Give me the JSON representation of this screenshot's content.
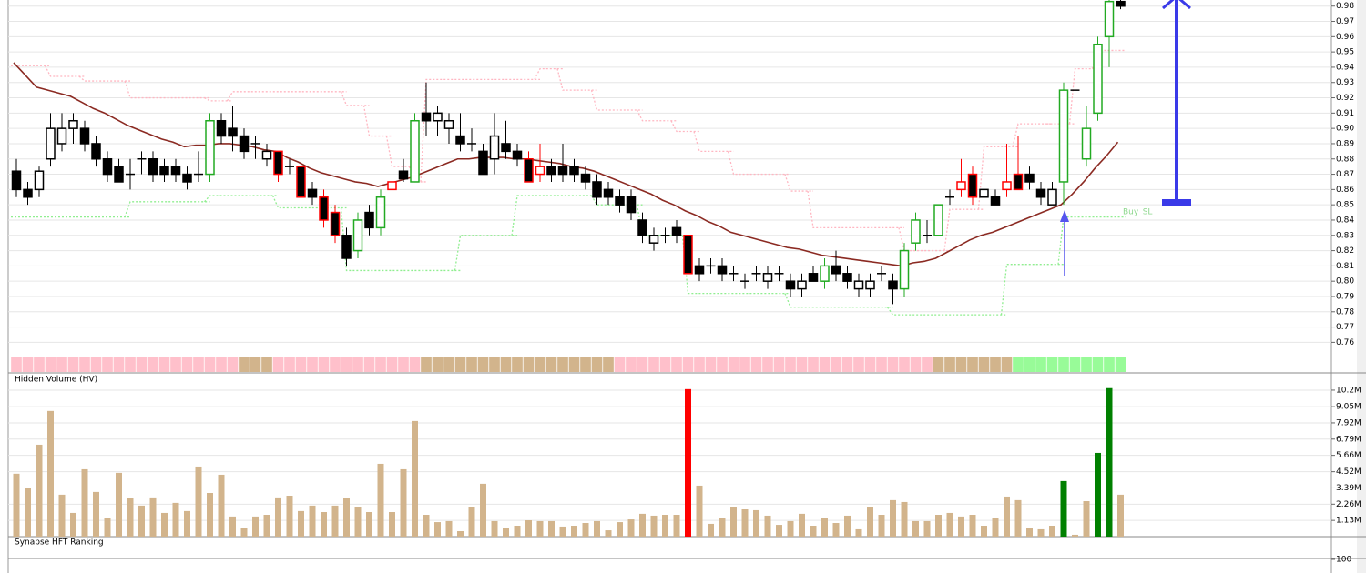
{
  "chart_data": [
    {
      "type": "candlestick",
      "ylim": [
        0.74,
        0.984
      ],
      "yticks": [
        0.76,
        0.77,
        0.78,
        0.79,
        {
          "value": 0.8,
          "label": "0.80"
        },
        0.81,
        0.82,
        0.83,
        0.84,
        0.85,
        0.86,
        0.87,
        0.88,
        0.89,
        {
          "value": 0.9,
          "label": "0.90"
        },
        0.91,
        0.92,
        0.93,
        0.94,
        0.95,
        0.96,
        0.97,
        0.98
      ],
      "grid": true,
      "open": [
        0.872,
        0.86,
        0.86,
        0.88,
        0.89,
        0.9,
        0.9,
        0.89,
        0.88,
        0.875,
        0.87,
        0.88,
        0.88,
        0.875,
        0.875,
        0.87,
        0.87,
        0.87,
        0.905,
        0.9,
        0.895,
        0.89,
        0.88,
        0.885,
        0.875,
        0.875,
        0.86,
        0.855,
        0.845,
        0.83,
        0.82,
        0.845,
        0.835,
        0.86,
        0.872,
        0.865,
        0.91,
        0.905,
        0.9,
        0.895,
        0.89,
        0.885,
        0.88,
        0.89,
        0.885,
        0.88,
        0.87,
        0.875,
        0.875,
        0.875,
        0.87,
        0.865,
        0.86,
        0.855,
        0.855,
        0.84,
        0.825,
        0.83,
        0.835,
        0.83,
        0.81,
        0.81,
        0.81,
        0.805,
        0.8,
        0.805,
        0.8,
        0.805,
        0.8,
        0.795,
        0.805,
        0.8,
        0.81,
        0.805,
        0.795,
        0.795,
        0.805,
        0.8,
        0.795,
        0.825,
        0.83,
        0.83,
        0.855,
        0.86,
        0.87,
        0.855,
        0.855,
        0.86,
        0.87,
        0.87,
        0.86,
        0.85,
        0.865,
        0.925,
        0.88,
        0.91,
        0.96,
        0.983
      ],
      "high": [
        0.88,
        0.865,
        0.875,
        0.91,
        0.91,
        0.91,
        0.905,
        0.895,
        0.885,
        0.88,
        0.88,
        0.885,
        0.885,
        0.88,
        0.88,
        0.875,
        0.885,
        0.91,
        0.91,
        0.915,
        0.9,
        0.895,
        0.89,
        0.885,
        0.88,
        0.875,
        0.865,
        0.86,
        0.85,
        0.835,
        0.845,
        0.85,
        0.86,
        0.88,
        0.88,
        0.91,
        0.93,
        0.915,
        0.91,
        0.91,
        0.9,
        0.89,
        0.91,
        0.905,
        0.89,
        0.885,
        0.89,
        0.88,
        0.89,
        0.88,
        0.875,
        0.87,
        0.865,
        0.86,
        0.86,
        0.845,
        0.835,
        0.835,
        0.84,
        0.85,
        0.815,
        0.815,
        0.815,
        0.81,
        0.805,
        0.81,
        0.81,
        0.81,
        0.805,
        0.805,
        0.81,
        0.815,
        0.82,
        0.81,
        0.805,
        0.805,
        0.81,
        0.805,
        0.825,
        0.845,
        0.84,
        0.85,
        0.86,
        0.88,
        0.875,
        0.865,
        0.86,
        0.89,
        0.895,
        0.875,
        0.865,
        0.865,
        0.93,
        0.93,
        0.915,
        0.96,
        0.984,
        0.984
      ],
      "low": [
        0.855,
        0.85,
        0.855,
        0.875,
        0.885,
        0.89,
        0.885,
        0.875,
        0.865,
        0.865,
        0.86,
        0.87,
        0.865,
        0.865,
        0.865,
        0.86,
        0.865,
        0.865,
        0.89,
        0.885,
        0.88,
        0.88,
        0.875,
        0.865,
        0.87,
        0.85,
        0.85,
        0.835,
        0.825,
        0.81,
        0.815,
        0.83,
        0.83,
        0.85,
        0.865,
        0.865,
        0.895,
        0.895,
        0.89,
        0.885,
        0.885,
        0.87,
        0.87,
        0.88,
        0.875,
        0.865,
        0.865,
        0.865,
        0.865,
        0.865,
        0.86,
        0.85,
        0.85,
        0.845,
        0.84,
        0.825,
        0.82,
        0.825,
        0.825,
        0.8,
        0.8,
        0.805,
        0.8,
        0.8,
        0.795,
        0.8,
        0.795,
        0.8,
        0.79,
        0.79,
        0.8,
        0.795,
        0.8,
        0.795,
        0.79,
        0.79,
        0.8,
        0.785,
        0.79,
        0.82,
        0.825,
        0.83,
        0.85,
        0.855,
        0.85,
        0.85,
        0.85,
        0.855,
        0.86,
        0.86,
        0.85,
        0.85,
        0.85,
        0.92,
        0.875,
        0.905,
        0.94,
        0.978
      ],
      "close": [
        0.86,
        0.855,
        0.872,
        0.9,
        0.9,
        0.905,
        0.89,
        0.88,
        0.87,
        0.865,
        0.87,
        0.88,
        0.87,
        0.87,
        0.87,
        0.865,
        0.87,
        0.905,
        0.895,
        0.895,
        0.885,
        0.89,
        0.885,
        0.87,
        0.875,
        0.855,
        0.855,
        0.84,
        0.83,
        0.815,
        0.84,
        0.835,
        0.855,
        0.865,
        0.867,
        0.905,
        0.905,
        0.91,
        0.905,
        0.89,
        0.89,
        0.87,
        0.895,
        0.885,
        0.88,
        0.865,
        0.875,
        0.87,
        0.87,
        0.87,
        0.865,
        0.855,
        0.855,
        0.85,
        0.845,
        0.83,
        0.83,
        0.83,
        0.83,
        0.805,
        0.805,
        0.81,
        0.805,
        0.805,
        0.8,
        0.805,
        0.805,
        0.805,
        0.795,
        0.8,
        0.8,
        0.81,
        0.805,
        0.8,
        0.8,
        0.8,
        0.805,
        0.795,
        0.82,
        0.84,
        0.83,
        0.85,
        0.855,
        0.865,
        0.855,
        0.86,
        0.85,
        0.865,
        0.86,
        0.865,
        0.855,
        0.86,
        0.925,
        0.925,
        0.9,
        0.955,
        0.983,
        0.98
      ],
      "edge_colors": [
        "#000000",
        "#000000",
        "#000000",
        "#000000",
        "#000000",
        "#000000",
        "#000000",
        "#000000",
        "#000000",
        "#000000",
        "#000000",
        "#000000",
        "#000000",
        "#000000",
        "#000000",
        "#000000",
        "#000000",
        "#22aa22",
        "#000000",
        "#000000",
        "#000000",
        "#000000",
        "#000000",
        "#ff0000",
        "#000000",
        "#ff0000",
        "#000000",
        "#ff0000",
        "#ff0000",
        "#000000",
        "#22aa22",
        "#000000",
        "#22aa22",
        "#ff0000",
        "#000000",
        "#22aa22",
        "#000000",
        "#000000",
        "#000000",
        "#000000",
        "#000000",
        "#000000",
        "#000000",
        "#000000",
        "#000000",
        "#ff0000",
        "#ff0000",
        "#000000",
        "#000000",
        "#000000",
        "#000000",
        "#000000",
        "#000000",
        "#000000",
        "#000000",
        "#000000",
        "#000000",
        "#000000",
        "#000000",
        "#ff0000",
        "#000000",
        "#000000",
        "#000000",
        "#000000",
        "#000000",
        "#000000",
        "#000000",
        "#000000",
        "#000000",
        "#000000",
        "#000000",
        "#22aa22",
        "#000000",
        "#000000",
        "#000000",
        "#000000",
        "#000000",
        "#000000",
        "#22aa22",
        "#22aa22",
        "#000000",
        "#22aa22",
        "#000000",
        "#ff0000",
        "#ff0000",
        "#000000",
        "#000000",
        "#ff0000",
        "#ff0000",
        "#000000",
        "#000000",
        "#000000",
        "#22aa22",
        "#000000",
        "#22aa22",
        "#22aa22",
        "#22aa22",
        "#000000"
      ],
      "ma": {
        "color": "#8b2a22",
        "values": [
          0.943,
          0.935,
          0.927,
          0.925,
          0.923,
          0.921,
          0.917,
          0.913,
          0.91,
          0.906,
          0.902,
          0.899,
          0.896,
          0.893,
          0.891,
          0.888,
          0.889,
          0.889,
          0.89,
          0.89,
          0.889,
          0.888,
          0.886,
          0.885,
          0.881,
          0.878,
          0.874,
          0.871,
          0.869,
          0.867,
          0.865,
          0.864,
          0.862,
          0.864,
          0.866,
          0.868,
          0.871,
          0.874,
          0.877,
          0.88,
          0.88,
          0.881,
          0.881,
          0.881,
          0.88,
          0.88,
          0.879,
          0.878,
          0.877,
          0.875,
          0.874,
          0.872,
          0.869,
          0.866,
          0.863,
          0.86,
          0.857,
          0.853,
          0.85,
          0.846,
          0.843,
          0.839,
          0.836,
          0.832,
          0.83,
          0.828,
          0.826,
          0.824,
          0.822,
          0.821,
          0.819,
          0.817,
          0.816,
          0.815,
          0.814,
          0.813,
          0.812,
          0.811,
          0.81,
          0.812,
          0.813,
          0.815,
          0.819,
          0.823,
          0.827,
          0.83,
          0.832,
          0.835,
          0.838,
          0.841,
          0.844,
          0.847,
          0.85,
          0.857,
          0.865,
          0.874,
          0.882,
          0.891
        ]
      },
      "upper": {
        "color": "#ffb6c1",
        "x": [
          0,
          3,
          6,
          10,
          17,
          19,
          29,
          31,
          33,
          35,
          36,
          46,
          48,
          51,
          55,
          58,
          60,
          63,
          68,
          70,
          78,
          82,
          85,
          88,
          91,
          93,
          95
        ],
        "values": [
          0.941,
          0.934,
          0.931,
          0.92,
          0.918,
          0.924,
          0.915,
          0.895,
          0.875,
          0.865,
          0.932,
          0.939,
          0.925,
          0.912,
          0.905,
          0.898,
          0.885,
          0.87,
          0.859,
          0.835,
          0.82,
          0.847,
          0.888,
          0.903,
          0.903,
          0.939,
          0.951
        ]
      },
      "lower": {
        "color": "#90ee90",
        "x": [
          0,
          10,
          17,
          23,
          29,
          39,
          44,
          51,
          55,
          59,
          68,
          77,
          87,
          92
        ],
        "values": [
          0.842,
          0.852,
          0.856,
          0.848,
          0.807,
          0.83,
          0.856,
          0.85,
          0.83,
          0.792,
          0.783,
          0.778,
          0.811,
          0.842
        ]
      },
      "state_segments": [
        {
          "start": 0,
          "end": 20,
          "color": "#ffc0cb"
        },
        {
          "start": 20,
          "end": 23,
          "color": "#d2b48c"
        },
        {
          "start": 23,
          "end": 36,
          "color": "#ffc0cb"
        },
        {
          "start": 36,
          "end": 53,
          "color": "#d2b48c"
        },
        {
          "start": 53,
          "end": 81,
          "color": "#ffc0cb"
        },
        {
          "start": 81,
          "end": 88,
          "color": "#d2b48c"
        },
        {
          "start": 88,
          "end": 98,
          "color": "#98fb98"
        }
      ],
      "annotations": [
        "Buy_SL"
      ]
    },
    {
      "type": "bar",
      "title": "Hidden Volume (HV)",
      "ylim": [
        0,
        11.4
      ],
      "yticks": [
        {
          "value": 1.13,
          "label": "1.13M"
        },
        {
          "value": 2.26,
          "label": "2.26M"
        },
        {
          "value": 3.39,
          "label": "3.39M"
        },
        {
          "value": 4.52,
          "label": "4.52M"
        },
        {
          "value": 5.66,
          "label": "5.66M"
        },
        {
          "value": 6.79,
          "label": "6.79M"
        },
        {
          "value": 7.92,
          "label": "7.92M"
        },
        {
          "value": 9.05,
          "label": "9.05M"
        },
        {
          "value": 10.2,
          "label": "10.2M"
        }
      ],
      "grid": true,
      "values": [
        4.38,
        3.36,
        6.4,
        8.75,
        2.92,
        1.65,
        4.69,
        3.11,
        1.33,
        4.44,
        2.66,
        2.16,
        2.73,
        1.65,
        2.35,
        1.78,
        4.88,
        3.04,
        4.31,
        1.4,
        0.63,
        1.4,
        1.52,
        2.73,
        2.85,
        1.78,
        2.16,
        1.71,
        2.16,
        2.66,
        2.09,
        1.71,
        5.07,
        1.71,
        4.69,
        8.05,
        1.52,
        1.01,
        1.08,
        0.38,
        2.09,
        3.68,
        1.08,
        0.57,
        0.76,
        1.14,
        1.08,
        1.08,
        0.7,
        0.76,
        0.95,
        1.08,
        0.44,
        1.01,
        1.2,
        1.59,
        1.46,
        1.52,
        1.52,
        10.27,
        3.55,
        0.89,
        1.33,
        2.09,
        1.9,
        1.84,
        1.46,
        0.82,
        1.08,
        1.59,
        0.76,
        1.27,
        0.95,
        1.46,
        0.51,
        2.09,
        1.52,
        2.54,
        2.41,
        1.08,
        1.08,
        1.52,
        1.65,
        1.4,
        1.52,
        0.76,
        1.27,
        2.79,
        2.54,
        0.63,
        0.51,
        0.76,
        3.87,
        0.13,
        2.47,
        5.83,
        10.34,
        2.92
      ],
      "colors": [
        "#d2b48c",
        "#d2b48c",
        "#d2b48c",
        "#d2b48c",
        "#d2b48c",
        "#d2b48c",
        "#d2b48c",
        "#d2b48c",
        "#d2b48c",
        "#d2b48c",
        "#d2b48c",
        "#d2b48c",
        "#d2b48c",
        "#d2b48c",
        "#d2b48c",
        "#d2b48c",
        "#d2b48c",
        "#d2b48c",
        "#d2b48c",
        "#d2b48c",
        "#d2b48c",
        "#d2b48c",
        "#d2b48c",
        "#d2b48c",
        "#d2b48c",
        "#d2b48c",
        "#d2b48c",
        "#d2b48c",
        "#d2b48c",
        "#d2b48c",
        "#d2b48c",
        "#d2b48c",
        "#d2b48c",
        "#d2b48c",
        "#d2b48c",
        "#d2b48c",
        "#d2b48c",
        "#d2b48c",
        "#d2b48c",
        "#d2b48c",
        "#d2b48c",
        "#d2b48c",
        "#d2b48c",
        "#d2b48c",
        "#d2b48c",
        "#d2b48c",
        "#d2b48c",
        "#d2b48c",
        "#d2b48c",
        "#d2b48c",
        "#d2b48c",
        "#d2b48c",
        "#d2b48c",
        "#d2b48c",
        "#d2b48c",
        "#d2b48c",
        "#d2b48c",
        "#d2b48c",
        "#d2b48c",
        "#ff0000",
        "#d2b48c",
        "#d2b48c",
        "#d2b48c",
        "#d2b48c",
        "#d2b48c",
        "#d2b48c",
        "#d2b48c",
        "#d2b48c",
        "#d2b48c",
        "#d2b48c",
        "#d2b48c",
        "#d2b48c",
        "#d2b48c",
        "#d2b48c",
        "#d2b48c",
        "#d2b48c",
        "#d2b48c",
        "#d2b48c",
        "#d2b48c",
        "#d2b48c",
        "#d2b48c",
        "#d2b48c",
        "#d2b48c",
        "#d2b48c",
        "#d2b48c",
        "#d2b48c",
        "#d2b48c",
        "#d2b48c",
        "#d2b48c",
        "#d2b48c",
        "#d2b48c",
        "#d2b48c",
        "#008000",
        "#d2b48c",
        "#d2b48c",
        "#008000",
        "#008000",
        "#d2b48c"
      ]
    },
    {
      "type": "bar",
      "title": "Synapse HFT Ranking",
      "ylim": [
        0,
        100
      ],
      "yticks": [
        100
      ]
    }
  ]
}
